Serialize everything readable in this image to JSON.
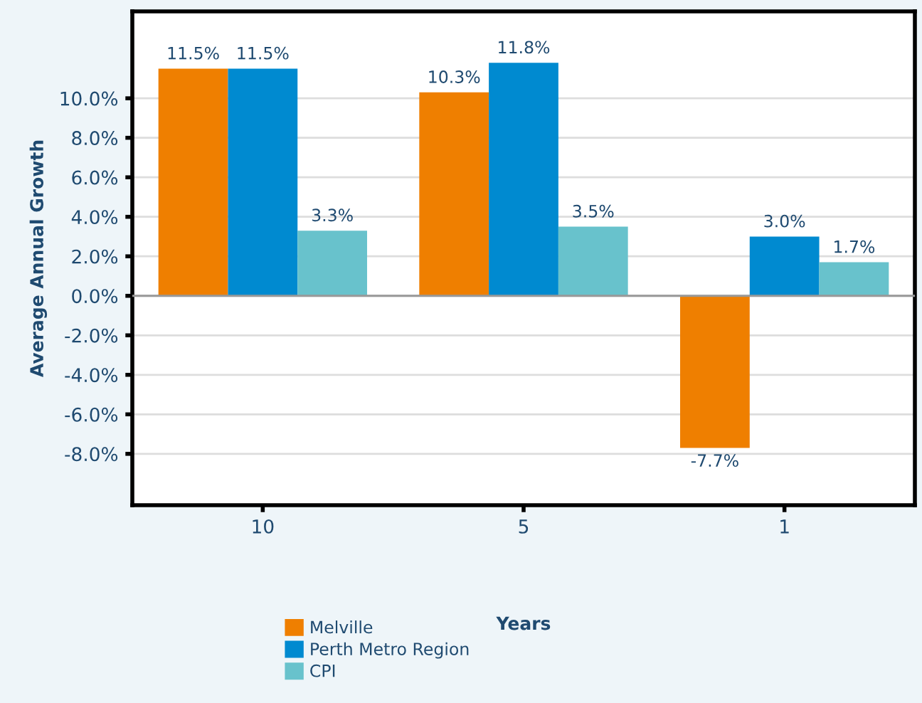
{
  "chart_data": {
    "type": "bar",
    "xlabel": "Years",
    "ylabel": "Average Annual Growth",
    "categories": [
      "10",
      "5",
      "1"
    ],
    "series": [
      {
        "name": "Melville",
        "color": "#ef7f00",
        "values": [
          11.5,
          10.3,
          -7.7
        ],
        "value_labels": [
          "11.5%",
          "10.3%",
          "-7.7%"
        ]
      },
      {
        "name": "Perth Metro Region",
        "color": "#008ad0",
        "values": [
          11.5,
          11.8,
          3.0
        ],
        "value_labels": [
          "11.5%",
          "11.8%",
          "3.0%"
        ]
      },
      {
        "name": "CPI",
        "color": "#68c2cc",
        "values": [
          3.3,
          3.5,
          1.7
        ],
        "value_labels": [
          "3.3%",
          "3.5%",
          "1.7%"
        ]
      }
    ],
    "ylim": [
      -10.6,
      14.4
    ],
    "yticks": [
      {
        "value": -8,
        "label": "-8.0%"
      },
      {
        "value": -6,
        "label": "-6.0%"
      },
      {
        "value": -4,
        "label": "-4.0%"
      },
      {
        "value": -2,
        "label": "-2.0%"
      },
      {
        "value": 0,
        "label": "0.0%"
      },
      {
        "value": 2,
        "label": "2.0%"
      },
      {
        "value": 4,
        "label": "4.0%"
      },
      {
        "value": 6,
        "label": "6.0%"
      },
      {
        "value": 8,
        "label": "8.0%"
      },
      {
        "value": 10,
        "label": "10.0%"
      }
    ],
    "grid": "y",
    "legend": "bottom left"
  }
}
